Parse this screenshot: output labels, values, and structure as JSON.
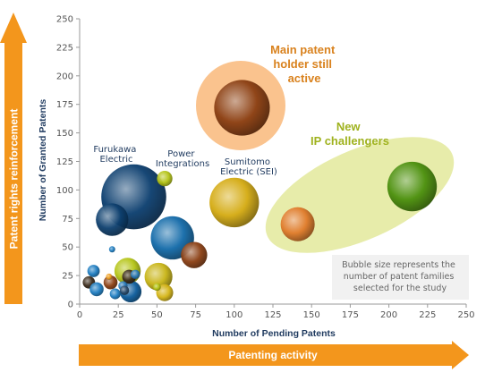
{
  "chart_data": {
    "type": "bubble",
    "xlabel": "Number of Pending Patents",
    "ylabel": "Number of Granted Patents",
    "xlim": [
      0,
      250
    ],
    "ylim": [
      0,
      250
    ],
    "xticks": [
      0,
      25,
      50,
      75,
      100,
      125,
      150,
      175,
      200,
      225,
      250
    ],
    "yticks": [
      0,
      25,
      50,
      75,
      100,
      125,
      150,
      175,
      200,
      225,
      250
    ],
    "vertical_arrow_label": "Patent rights reinforcement",
    "horizontal_arrow_label": "Patenting activity",
    "size_note": [
      "Bubble size represents the",
      "number of patent families",
      "selected for the study"
    ],
    "bubble_labels": [
      {
        "id": "furukawa",
        "lines": [
          "Furukawa",
          "Electric"
        ]
      },
      {
        "id": "power",
        "lines": [
          "Power",
          "Integrations"
        ]
      },
      {
        "id": "sumitomo",
        "lines": [
          "Sumitomo",
          "Electric (SEI)"
        ]
      }
    ],
    "annotations": [
      {
        "id": "main-holder",
        "lines": [
          "Main patent",
          "holder still",
          "active"
        ],
        "color": "#d9821e"
      },
      {
        "id": "new-challengers",
        "lines": [
          "New",
          "IP challengers"
        ],
        "color": "#9fb21e"
      }
    ],
    "bubbles": [
      {
        "x": 105,
        "y": 172,
        "size": 18,
        "color": "#8a3e12",
        "label": ""
      },
      {
        "x": 215,
        "y": 103,
        "size": 16,
        "color": "#4a8f0c",
        "label": ""
      },
      {
        "x": 141,
        "y": 70,
        "size": 11,
        "color": "#e07a2a",
        "label": ""
      },
      {
        "x": 100,
        "y": 89,
        "size": 16,
        "color": "#d4aa10",
        "label": "Sumitomo Electric (SEI)"
      },
      {
        "x": 35,
        "y": 94,
        "size": 21,
        "color": "#0a3d6e",
        "label": "Furukawa Electric"
      },
      {
        "x": 21,
        "y": 74,
        "size": 10.5,
        "color": "#0d3f6e",
        "label": ""
      },
      {
        "x": 55,
        "y": 110,
        "size": 5,
        "color": "#b4c414",
        "label": "Power Integrations"
      },
      {
        "x": 60,
        "y": 58,
        "size": 14,
        "color": "#1169a8",
        "label": ""
      },
      {
        "x": 74,
        "y": 43,
        "size": 8.5,
        "color": "#8a3e12",
        "label": ""
      },
      {
        "x": 31,
        "y": 29,
        "size": 8.5,
        "color": "#b4c414",
        "label": ""
      },
      {
        "x": 51,
        "y": 24,
        "size": 9,
        "color": "#c8b414",
        "label": ""
      },
      {
        "x": 55,
        "y": 10,
        "size": 5.5,
        "color": "#d4b414",
        "label": ""
      },
      {
        "x": 33,
        "y": 11,
        "size": 7,
        "color": "#0a5a9a",
        "label": ""
      },
      {
        "x": 9,
        "y": 29,
        "size": 4,
        "color": "#1b7bc0",
        "label": ""
      },
      {
        "x": 21,
        "y": 48,
        "size": 2,
        "color": "#1b7bc0",
        "label": ""
      },
      {
        "x": 6,
        "y": 19,
        "size": 4,
        "color": "#3a2a1a",
        "label": ""
      },
      {
        "x": 11,
        "y": 13,
        "size": 4.5,
        "color": "#1b7bc0",
        "label": ""
      },
      {
        "x": 20,
        "y": 19,
        "size": 4.5,
        "color": "#8a3e12",
        "label": ""
      },
      {
        "x": 23,
        "y": 9,
        "size": 3.5,
        "color": "#1b7bc0",
        "label": ""
      },
      {
        "x": 32,
        "y": 24,
        "size": 4.5,
        "color": "#3a2a1a",
        "label": ""
      },
      {
        "x": 36,
        "y": 26,
        "size": 3,
        "color": "#2a7ab8",
        "label": ""
      },
      {
        "x": 28,
        "y": 16,
        "size": 3,
        "color": "#2a7ab8",
        "label": ""
      },
      {
        "x": 29,
        "y": 12,
        "size": 3,
        "color": "#2a4a6a",
        "label": ""
      },
      {
        "x": 50,
        "y": 15,
        "size": 2.5,
        "color": "#b4c414",
        "label": ""
      },
      {
        "x": 19,
        "y": 24,
        "size": 2,
        "color": "#f0a020",
        "label": ""
      }
    ]
  },
  "colors": {
    "arrow": "#f3961c",
    "orange_highlight": "#f9b97a",
    "green_highlight": "#e7ecaa",
    "axis": "#9a9a9a",
    "note_bg": "#f1f1f1"
  }
}
